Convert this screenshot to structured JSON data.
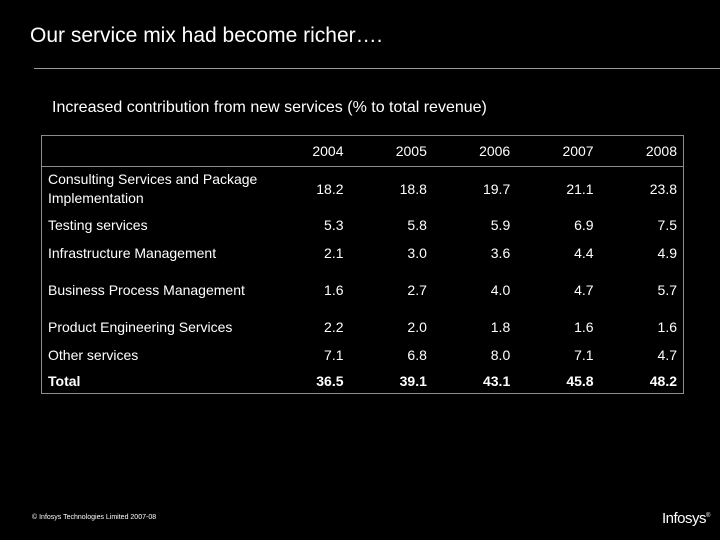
{
  "slide": {
    "title": "Our service mix had become richer….",
    "subtitle": "Increased contribution from new services (% to total revenue)"
  },
  "table": {
    "years": [
      "2004",
      "2005",
      "2006",
      "2007",
      "2008"
    ],
    "rows": [
      {
        "label": "Consulting Services and Package Implementation",
        "values": [
          "18.2",
          "18.8",
          "19.7",
          "21.1",
          "23.8"
        ]
      },
      {
        "label": "Testing services",
        "values": [
          "5.3",
          "5.8",
          "5.9",
          "6.9",
          "7.5"
        ]
      },
      {
        "label": "Infrastructure Management",
        "values": [
          "2.1",
          "3.0",
          "3.6",
          "4.4",
          "4.9"
        ]
      },
      {
        "label": "Business Process Management",
        "values": [
          "1.6",
          "2.7",
          "4.0",
          "4.7",
          "5.7"
        ]
      },
      {
        "label": "Product Engineering Services",
        "values": [
          "2.2",
          "2.0",
          "1.8",
          "1.6",
          "1.6"
        ]
      },
      {
        "label": "Other services",
        "values": [
          "7.1",
          "6.8",
          "8.0",
          "7.1",
          "4.7"
        ]
      }
    ],
    "total": {
      "label": "Total",
      "values": [
        "36.5",
        "39.1",
        "43.1",
        "45.8",
        "48.2"
      ]
    }
  },
  "footer": {
    "copyright": "© Infosys Technologies Limited 2007-08",
    "logo": "Infosys",
    "logo_mark": "®"
  }
}
